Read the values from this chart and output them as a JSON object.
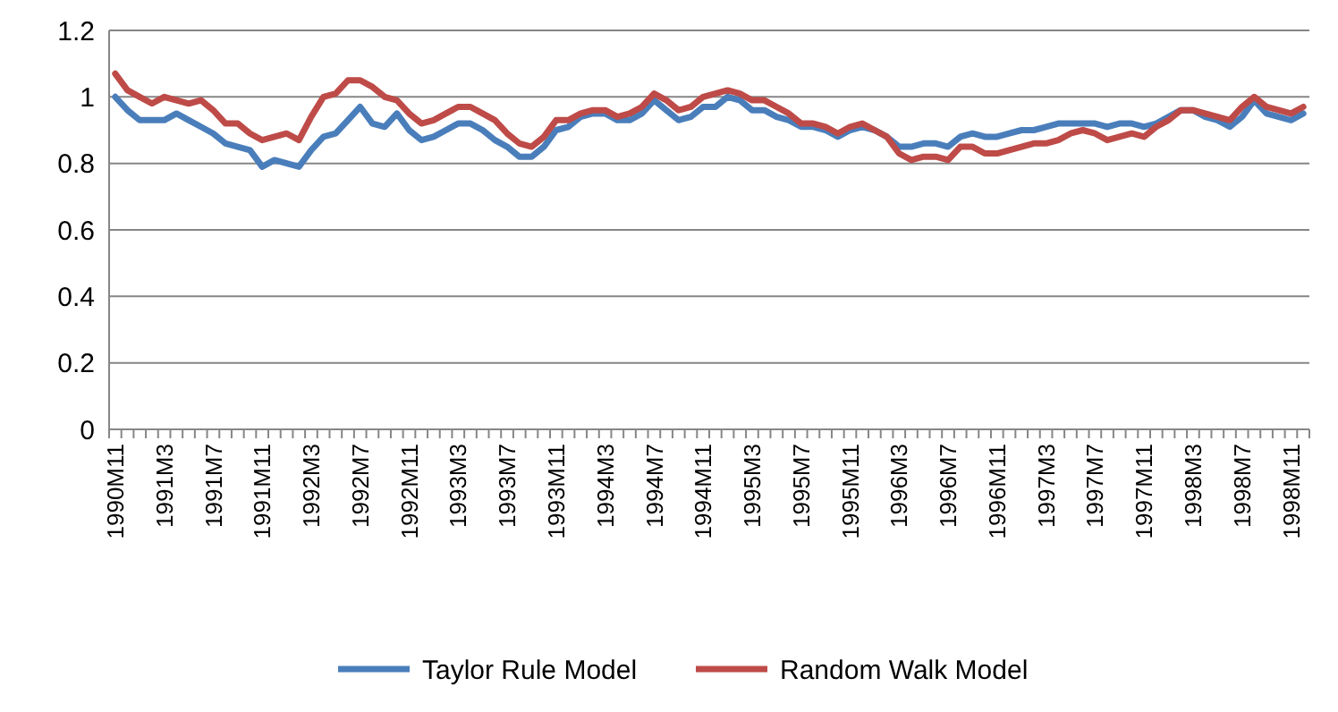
{
  "chart_data": {
    "type": "line",
    "categories": [
      "1990M11",
      null,
      null,
      null,
      "1991M3",
      null,
      null,
      null,
      "1991M7",
      null,
      null,
      null,
      "1991M11",
      null,
      null,
      null,
      "1992M3",
      null,
      null,
      null,
      "1992M7",
      null,
      null,
      null,
      "1992M11",
      null,
      null,
      null,
      "1993M3",
      null,
      null,
      null,
      "1993M7",
      null,
      null,
      null,
      "1993M11",
      null,
      null,
      null,
      "1994M3",
      null,
      null,
      null,
      "1994M7",
      null,
      null,
      null,
      "1994M11",
      null,
      null,
      null,
      "1995M3",
      null,
      null,
      null,
      "1995M7",
      null,
      null,
      null,
      "1995M11",
      null,
      null,
      null,
      "1996M3",
      null,
      null,
      null,
      "1996M7",
      null,
      null,
      null,
      "1996M11",
      null,
      null,
      null,
      "1997M3",
      null,
      null,
      null,
      "1997M7",
      null,
      null,
      null,
      "1997M11",
      null,
      null,
      null,
      "1998M3",
      null,
      null,
      null,
      "1998M7",
      null,
      null,
      null,
      "1998M11",
      null
    ],
    "series": [
      {
        "name": "Taylor Rule Model",
        "color": "#4a7ebb",
        "values": [
          1.0,
          0.96,
          0.93,
          0.93,
          0.93,
          0.95,
          0.93,
          0.91,
          0.89,
          0.86,
          0.85,
          0.84,
          0.79,
          0.81,
          0.8,
          0.79,
          0.84,
          0.88,
          0.89,
          0.93,
          0.97,
          0.92,
          0.91,
          0.95,
          0.9,
          0.87,
          0.88,
          0.9,
          0.92,
          0.92,
          0.9,
          0.87,
          0.85,
          0.82,
          0.82,
          0.85,
          0.9,
          0.91,
          0.94,
          0.95,
          0.95,
          0.93,
          0.93,
          0.95,
          0.99,
          0.96,
          0.93,
          0.94,
          0.97,
          0.97,
          1.0,
          0.99,
          0.96,
          0.96,
          0.94,
          0.93,
          0.91,
          0.91,
          0.9,
          0.88,
          0.9,
          0.91,
          0.9,
          0.88,
          0.85,
          0.85,
          0.86,
          0.86,
          0.85,
          0.88,
          0.89,
          0.88,
          0.88,
          0.89,
          0.9,
          0.9,
          0.91,
          0.92,
          0.92,
          0.92,
          0.92,
          0.91,
          0.92,
          0.92,
          0.91,
          0.92,
          0.94,
          0.96,
          0.96,
          0.94,
          0.93,
          0.91,
          0.94,
          0.99,
          0.95,
          0.94,
          0.93,
          0.95
        ]
      },
      {
        "name": "Random Walk Model",
        "color": "#be4b48",
        "values": [
          1.07,
          1.02,
          1.0,
          0.98,
          1.0,
          0.99,
          0.98,
          0.99,
          0.96,
          0.92,
          0.92,
          0.89,
          0.87,
          0.88,
          0.89,
          0.87,
          0.94,
          1.0,
          1.01,
          1.05,
          1.05,
          1.03,
          1.0,
          0.99,
          0.95,
          0.92,
          0.93,
          0.95,
          0.97,
          0.97,
          0.95,
          0.93,
          0.89,
          0.86,
          0.85,
          0.88,
          0.93,
          0.93,
          0.95,
          0.96,
          0.96,
          0.94,
          0.95,
          0.97,
          1.01,
          0.99,
          0.96,
          0.97,
          1.0,
          1.01,
          1.02,
          1.01,
          0.99,
          0.99,
          0.97,
          0.95,
          0.92,
          0.92,
          0.91,
          0.89,
          0.91,
          0.92,
          0.9,
          0.88,
          0.83,
          0.81,
          0.82,
          0.82,
          0.81,
          0.85,
          0.85,
          0.83,
          0.83,
          0.84,
          0.85,
          0.86,
          0.86,
          0.87,
          0.89,
          0.9,
          0.89,
          0.87,
          0.88,
          0.89,
          0.88,
          0.91,
          0.93,
          0.96,
          0.96,
          0.95,
          0.94,
          0.93,
          0.97,
          1.0,
          0.97,
          0.96,
          0.95,
          0.97
        ]
      }
    ],
    "ylim": [
      0,
      1.2
    ],
    "yticks": [
      0,
      {
        "value": 0.2,
        "label": "0.2"
      },
      {
        "value": 0.4,
        "label": "0.4"
      },
      {
        "value": 0.6,
        "label": "0.6"
      },
      {
        "value": 0.8,
        "label": "0.8"
      },
      1,
      {
        "value": 1.2,
        "label": "1.2"
      }
    ],
    "grid": "y",
    "legend": "bottom",
    "marker": "none",
    "line_style": "solid"
  }
}
